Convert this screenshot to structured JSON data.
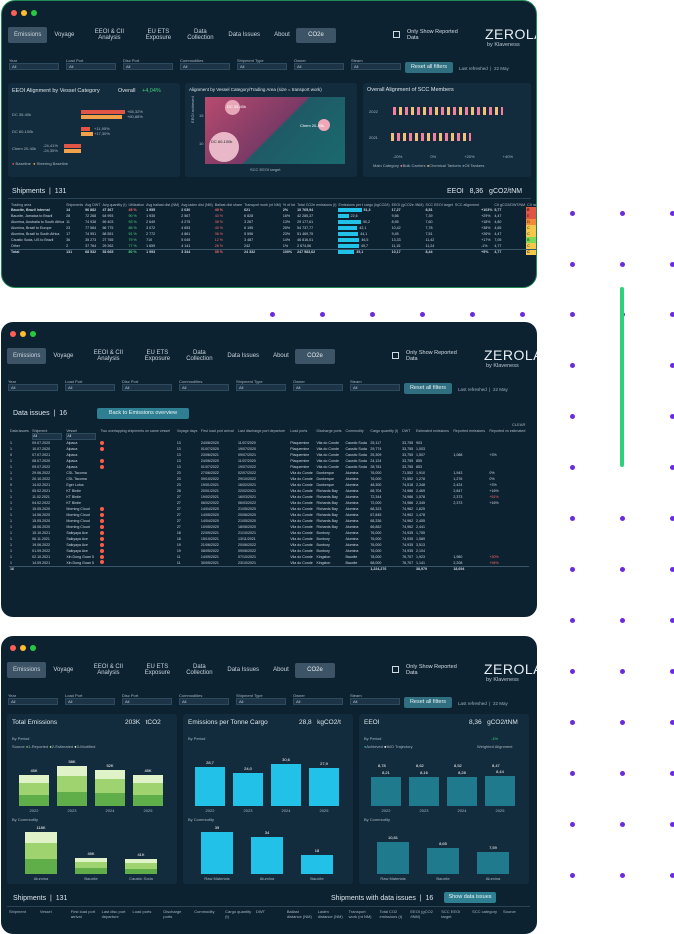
{
  "nav": {
    "tabs": [
      "Emissions",
      "Voyage",
      "EEOI & CII Analysis",
      "EU ETS Exposure",
      "Data Collection",
      "Data Issues",
      "About"
    ],
    "co2": "CO2e",
    "checkbox": "Only Show Reported Data",
    "logo": "ZEROLAB",
    "by": "by Klaveness"
  },
  "filters": {
    "labels": [
      "Year",
      "Load Port",
      "Disc Port",
      "Commodities",
      "Shipment Type",
      "Owner",
      "Steam"
    ],
    "value": "All",
    "reset": "Reset all filters",
    "refreshed": "Last refreshed",
    "refreshed_val": "22 May"
  },
  "screen1": {
    "p1": {
      "title": "EEOI Alignment by Vessel Category",
      "overall": "Overall",
      "overall_val": "+4,04%",
      "rows": [
        {
          "label": "DC 35-40k",
          "a": "+65,32%",
          "b": "+60,88%"
        },
        {
          "label": "DC 60-100k",
          "a": "+11,95%",
          "b": "+17,30%"
        },
        {
          "label": "Chem 20-40k",
          "a": "-24,41%",
          "b": "-24,35%"
        }
      ],
      "legend": [
        "Baseline",
        "Steering Baseline"
      ]
    },
    "p2": {
      "title": "Alignment by Vessel Category/Trading Area (size = transport work)",
      "ylabel": "EEOI achieved",
      "xlabel": "SCC EEOI target",
      "ticks_y": [
        "15",
        "10"
      ],
      "ticks_x": [
        "10",
        "15"
      ],
      "bubbles": [
        "DC 35-40k",
        "Chem 20-40k",
        "DC 60-100k"
      ]
    },
    "p3": {
      "title": "Overall Alignment of SCC Members",
      "years": [
        "2022",
        "2021"
      ],
      "ticks": [
        "-20%",
        "0%",
        "+20%",
        "+40%"
      ],
      "legend_title": "Main Category",
      "legend": [
        "Bulk Carriers",
        "Chemical Tankers",
        "Oil Tankers"
      ]
    },
    "shipments": {
      "title": "Shipments",
      "count": "131",
      "eeoi_label": "EEOI",
      "eeoi_val": "8,36",
      "unit": "gCO2/tNM",
      "headers": [
        "Trading area",
        "Shipments",
        "Avg DWT",
        "Avg quantity (t)",
        "Utilization",
        "Avg ballast dist (NM)",
        "Avg laden dist (NM)",
        "Ballast dist share",
        "Transport work (nt NM)",
        "% of tot",
        "Total CO2e emissions (t)",
        "Emissions per t cargo (kgCO2/t)",
        "EEOI (gCO2e /tNM)",
        "SCC EEOI target",
        "SCC alignment",
        "",
        "CII gCO2/DWT/NM",
        "CII rating"
      ],
      "rows": [
        [
          "Bauxite, Brazil Internal",
          "14",
          "96 882",
          "47 367",
          "49 %",
          "1 955",
          "2 030",
          "49 %",
          "621",
          "2%",
          "10 765,94",
          "51,3",
          "17,27",
          "8,51",
          "",
          "+103%",
          "5,77",
          "E"
        ],
        [
          "Bauxite, Jamaica to Brazil",
          "28",
          "72 268",
          "64 993",
          "90 %",
          "1 935",
          "2 567",
          "43 %",
          "6 828",
          "16%",
          "42 285,37",
          "22,6",
          "9,56",
          "7,39",
          "",
          "+29%",
          "4,47",
          "E"
        ],
        [
          "Alumina, Australia to South Africa",
          "11",
          "74 938",
          "69 403",
          "93 %",
          "2 649",
          "4 275",
          "38 %",
          "3 267",
          "13%",
          "29 177,61",
          "50,2",
          "8,95",
          "7,60",
          "",
          "+18%",
          "4,80",
          "D"
        ],
        [
          "Alumina, Brazil to Europe",
          "23",
          "77 584",
          "66 775",
          "86 %",
          "3 072",
          "4 653",
          "40 %",
          "6 195",
          "25%",
          "54 737,77",
          "42,1",
          "10,42",
          "7,78",
          "",
          "+38%",
          "4,65",
          "C"
        ],
        [
          "Alumina, Brazil to South Africa",
          "17",
          "74 951",
          "68 551",
          "91 %",
          "2 772",
          "4 861",
          "36 %",
          "5 596",
          "23%",
          "51 469,75",
          "44,1",
          "9,45",
          "7,51",
          "",
          "+26%",
          "4,47",
          "C"
        ],
        [
          "Caustic Soda, US to Brazil",
          "36",
          "35 273",
          "27 765",
          "79 %",
          "710",
          "5 045",
          "12 %",
          "3 487",
          "14%",
          "46 816,01",
          "46,5",
          "13,33",
          "11,42",
          "",
          "+17%",
          "7,05",
          "B"
        ],
        [
          "Other",
          "2",
          "37 764",
          "29 262",
          "77 %",
          "1 659",
          "4 141",
          "28 %",
          "242",
          "1%",
          "2 674,56",
          "45,7",
          "11,15",
          "11,24",
          "",
          "-1%",
          "4,77",
          "C"
        ],
        [
          "Total",
          "131",
          "68 532",
          "53 665",
          "80 %",
          "1 993",
          "3 344",
          "35 %",
          "24 332",
          "100%",
          "247 583,62",
          "35,1",
          "10,17",
          "8,44",
          "",
          "+5%",
          "4,77",
          "C"
        ]
      ]
    }
  },
  "screen2": {
    "title": "Data issues",
    "count": "16",
    "back": "Back to Emissions overview",
    "clear": "CLEAR",
    "headers": [
      "Data issues",
      "Shipment",
      "Vessel",
      "Two overlapping shipments on same vessel",
      "Voyage days",
      "First load port arrival",
      "Last discharge port departure",
      "Load ports",
      "Discharge ports",
      "Commodity",
      "Cargo quantity (t)",
      "DWT",
      "Estimated emissions",
      "Reported emissions",
      "Reported vs estimated"
    ],
    "rows": [
      [
        "1",
        "09.07.2020",
        "Alpaca",
        "1",
        "1",
        "13",
        "24/06/2020",
        "11/07/2020",
        "Plaquemine",
        "Vila do Conde",
        "Caustic Soda",
        "25,117",
        "33,755",
        "903",
        "",
        "",
        ""
      ],
      [
        "1",
        "10.07.2020",
        "Alpaca",
        "1",
        "1",
        "13",
        "01/07/2020",
        "19/07/2020",
        "Plaquemine",
        "Vila do Conde",
        "Caustic Soda",
        "29,774",
        "33,755",
        "1,003",
        "",
        "",
        ""
      ],
      [
        "0",
        "07.07.2021",
        "Alpaca",
        "0",
        "6",
        "13",
        "23/06/2021",
        "09/07/2021",
        "Plaquemine",
        "Vila do Conde",
        "Caustic Soda",
        "25,309",
        "33,755",
        "1,507",
        "1,088",
        "+3%",
        ""
      ],
      [
        "1",
        "08.07.2020",
        "Alpaca",
        "1",
        "1",
        "13",
        "24/06/2020",
        "11/07/2020",
        "Plaquemine",
        "Vila do Conde",
        "Caustic Soda",
        "24,124",
        "33,755",
        "855",
        "",
        "",
        ""
      ],
      [
        "1",
        "09.07.2022",
        "Alpaca",
        "1",
        "1",
        "13",
        "01/07/2022",
        "19/07/2022",
        "Plaquemine",
        "Vila do Conde",
        "Caustic Soda",
        "28,781",
        "33,755",
        "853",
        "",
        "",
        ""
      ],
      [
        "1",
        "29.06.2022",
        "CSL Tacoma",
        "0",
        "1",
        "23",
        "27/06/2022",
        "02/07/2022",
        "Vila do Conde",
        "Dunkerque",
        "Alumina",
        "76,000",
        "71,552",
        "1,910",
        "1,943",
        "0%",
        ""
      ],
      [
        "1",
        "20.10.2022",
        "CSL Tacoma",
        "0",
        "1",
        "23",
        "09/10/2022",
        "29/10/2022",
        "Vila do Conde",
        "Dunkerque",
        "Alumina",
        "76,000",
        "71,552",
        "1,278",
        "1,276",
        "0%",
        ""
      ],
      [
        "0",
        "14.02.2021",
        "Eger Lotus",
        "0",
        "6",
        "23",
        "19/01/2021",
        "16/02/2021",
        "Vila do Conde",
        "Dunkerque",
        "Alumina",
        "48,300",
        "74,518",
        "2,348",
        "2,424",
        "+3%",
        ""
      ],
      [
        "1",
        "05.02.2021",
        "KT Birdie",
        "0",
        "6",
        "28",
        "20/01/2021",
        "22/02/2021",
        "Vila do Conde",
        "Richards Bay",
        "Alumina",
        "68,704",
        "74,986",
        "2,469",
        "2,847",
        "+16%",
        ""
      ],
      [
        "1",
        "11.02.2021",
        "KT Birdie",
        "0",
        "6",
        "27",
        "19/02/2021",
        "16/03/2021",
        "Vila do Conde",
        "Richards Bay",
        "Alumina",
        "72,344",
        "74,986",
        "1,578",
        "2,373",
        "+51%",
        ""
      ],
      [
        "1",
        "04.02.2022",
        "KT Birdie",
        "0",
        "6",
        "27",
        "06/02/2022",
        "06/03/2022",
        "Vila do Conde",
        "Richards Bay",
        "Alumina",
        "72,000",
        "74,986",
        "2,345",
        "2,373",
        "+16%",
        ""
      ],
      [
        "1",
        "15.05.2020",
        "Morning Cloud",
        "1",
        "1",
        "27",
        "14/04/2020",
        "21/05/2020",
        "Vila do Conde",
        "Richards Bay",
        "Alumina",
        "68,323",
        "74,962",
        "1,625",
        "",
        "",
        ""
      ],
      [
        "1",
        "14.06.2020",
        "Morning Cloud",
        "1",
        "1",
        "27",
        "14/05/2020",
        "20/06/2020",
        "Vila do Conde",
        "Richards Bay",
        "Alumina",
        "67,845",
        "74,962",
        "1,478",
        "",
        "",
        ""
      ],
      [
        "1",
        "15.05.2020",
        "Morning Cloud",
        "1",
        "1",
        "27",
        "14/04/2020",
        "21/05/2020",
        "Vila do Conde",
        "Richards Bay",
        "Alumina",
        "68,336",
        "74,962",
        "2,455",
        "",
        "",
        ""
      ],
      [
        "1",
        "18.06.2020",
        "Morning Cloud",
        "1",
        "1",
        "27",
        "10/05/2020",
        "18/06/2020",
        "Vila do Conde",
        "Richards Bay",
        "Alumina",
        "66,862",
        "74,962",
        "2,441",
        "",
        "",
        ""
      ],
      [
        "1",
        "15.10.2021",
        "Saikyaya Ace",
        "1",
        "1",
        "18",
        "22/09/2021",
        "21/10/2021",
        "Vila do Conde",
        "Bunbury",
        "Alumina",
        "76,000",
        "74,935",
        "1,755",
        "",
        "",
        ""
      ],
      [
        "1",
        "06.11.2021",
        "Saikyaya Ace",
        "1",
        "1",
        "18",
        "15/10/2021",
        "13/11/2021",
        "Vila do Conde",
        "Bunbury",
        "Alumina",
        "76,000",
        "74,935",
        "1,589",
        "",
        "",
        ""
      ],
      [
        "1",
        "19.06.2022",
        "Saikyaya Ace",
        "1",
        "1",
        "19",
        "21/06/2022",
        "20/06/2022",
        "Vila do Conde",
        "Bunbury",
        "Alumina",
        "76,000",
        "74,935",
        "3,513",
        "",
        "",
        ""
      ],
      [
        "1",
        "01.09.2022",
        "Saikyaya Ace",
        "1",
        "1",
        "19",
        "08/05/2022",
        "09/06/2022",
        "Vila do Conde",
        "Bunbury",
        "Alumina",
        "76,000",
        "74,935",
        "2,104",
        "",
        "",
        ""
      ],
      [
        "1",
        "02.10.2021",
        "Xin Dong Guan 5",
        "1",
        "1",
        "11",
        "14/09/2021",
        "07/10/2021",
        "Vila do Conde",
        "Kingston",
        "Bauxite",
        "78,000",
        "76,707",
        "1,923",
        "1,980",
        "+30%",
        ""
      ],
      [
        "1",
        "14.09.2021",
        "Xin Dong Guan 5",
        "1",
        "1",
        "11",
        "30/05/2021",
        "23/10/2021",
        "Vila do Conde",
        "Kingston",
        "Bauxite",
        "68,000",
        "76,707",
        "1,141",
        "2,208",
        "+94%",
        ""
      ]
    ],
    "total": [
      "16",
      "",
      "",
      "",
      "",
      "",
      "",
      "",
      "",
      "",
      "",
      "1,224,276",
      "",
      "38,979",
      "18,694",
      ""
    ]
  },
  "screen3": {
    "total": {
      "title": "Total Emissions",
      "value": "203K",
      "unit": "tCO2",
      "by_period": "By Period",
      "legend_title": "Source",
      "legend": [
        "1-Reported",
        "2-Estimated",
        "3-Modified"
      ],
      "years": [
        "2022",
        "2023",
        "2024",
        "2025"
      ],
      "vals": [
        "45K",
        "58K",
        "52K",
        "45K"
      ],
      "by_comm": "By Commodity",
      "comms": [
        "Alumina",
        "Bauxite",
        "Caustic Soda"
      ],
      "cvals": [
        "118K",
        "45K",
        "41K"
      ]
    },
    "ptc": {
      "title": "Emissions per Tonne Cargo",
      "value": "28,8",
      "unit": "kgCO2/t",
      "by_period": "By Period",
      "years": [
        "2022",
        "2023",
        "2024",
        "2025"
      ],
      "vals": [
        "28,7",
        "24,0",
        "30,6",
        "27,9"
      ],
      "by_comm": "By Commodity",
      "comms": [
        "Raw Materials",
        "Alumina",
        "Bauxite"
      ],
      "cvals": [
        "39",
        "34",
        "18"
      ]
    },
    "eeoi": {
      "title": "EEOI",
      "value": "8,36",
      "unit": "gCO2/tNM",
      "by_period": "By Period",
      "delta": "-1%",
      "legend": [
        "Achieved",
        "IMO Trajectory"
      ],
      "weighted": "Weighted Alignment",
      "years": [
        "2022",
        "2023",
        "2024",
        "2025"
      ],
      "vals": [
        "8,21",
        "8,16",
        "8,28",
        "8,44"
      ],
      "imo": [
        "8,78",
        "8,62",
        "8,52",
        "8,47"
      ],
      "by_comm": "By Commodity",
      "comms": [
        "Raw Materials",
        "Bauxite",
        "Alumina"
      ],
      "cvals": [
        "10,81",
        "8,65",
        "7,59"
      ]
    },
    "shipments": {
      "title": "Shipments",
      "count": "131",
      "with": "Shipments with data issues",
      "with_count": "16",
      "show": "Show data issues",
      "headers": [
        "Shipment",
        "Vessel",
        "First load port arrival",
        "Last disc port departure",
        "Load ports",
        "Discharge ports",
        "Commodity",
        "Cargo quantity (t)",
        "DWT",
        "Ballast distance (NM)",
        "Laden distance (NM)",
        "Transport work (nt NM)",
        "Total CO2 emissions (t)",
        "EEOI (gCO2 /tNM)",
        "SCC EEOI target",
        "SCC category",
        "Source"
      ]
    }
  },
  "colors": {
    "bg": "#0d2231",
    "panel": "#132c3d",
    "accent": "#2f7f92",
    "red": "#e05545",
    "orange": "#f2a14b",
    "green": "#2fd07c",
    "blue": "#22c2e8",
    "purple": "#6a2be0"
  }
}
